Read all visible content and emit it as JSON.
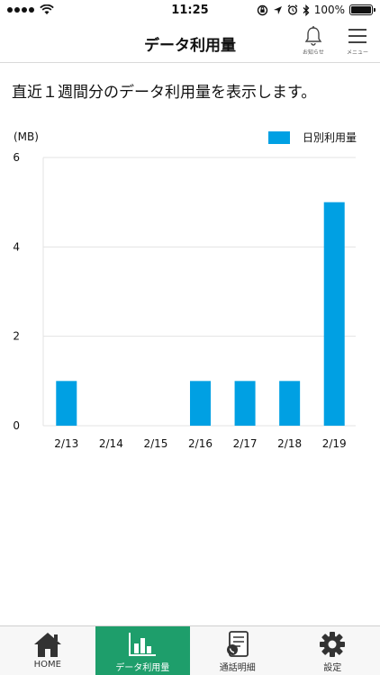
{
  "status_bar": {
    "time": "11:25",
    "battery_text": "100%",
    "battery_level": 1.0
  },
  "header": {
    "title": "データ利用量",
    "notice_label": "お知らせ",
    "menu_label": "メニュー"
  },
  "intro_text": "直近１週間分のデータ利用量を表示します。",
  "chart_data": {
    "type": "bar",
    "ylabel": "(MB)",
    "yticks": [
      "0",
      "2",
      "4",
      "6"
    ],
    "ylim": [
      0,
      6
    ],
    "categories": [
      "2/13",
      "2/14",
      "2/15",
      "2/16",
      "2/17",
      "2/18",
      "2/19"
    ],
    "series": [
      {
        "name": "日別利用量",
        "values": [
          1,
          0,
          0,
          1,
          1,
          1,
          5
        ]
      }
    ],
    "color": "#00a0e3",
    "legend_position": "top-right",
    "grid": true
  },
  "tabs": [
    {
      "label": "HOME",
      "icon": "home-icon",
      "active": false
    },
    {
      "label": "データ利用量",
      "icon": "bar-chart-icon",
      "active": true
    },
    {
      "label": "通話明細",
      "icon": "call-details-icon",
      "active": false
    },
    {
      "label": "設定",
      "icon": "gear-icon",
      "active": false
    }
  ],
  "colors": {
    "accent": "#1e9e6b",
    "bar": "#00a0e3"
  }
}
